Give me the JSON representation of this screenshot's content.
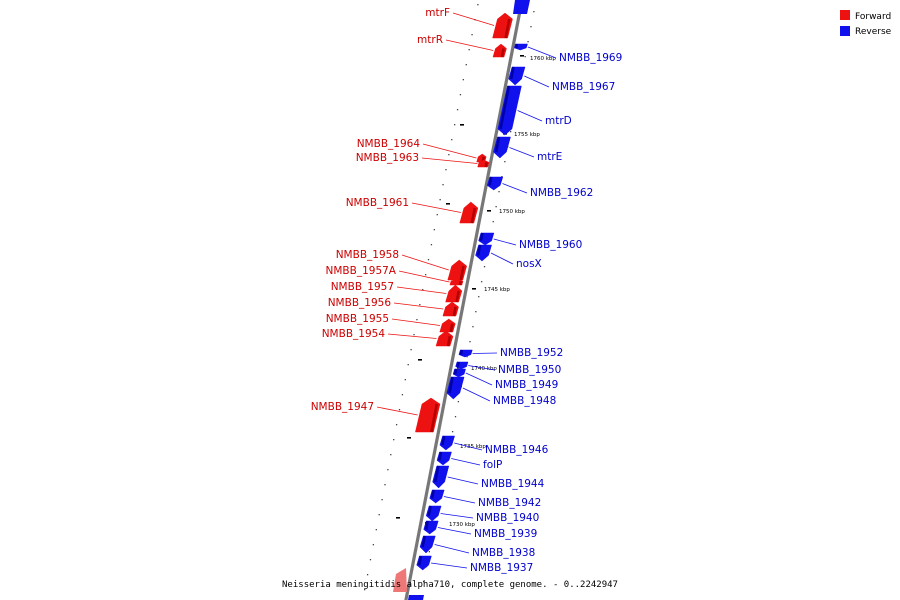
{
  "colors": {
    "forward": "#ee1111",
    "reverse": "#1111ee",
    "backbone": "#777777"
  },
  "legend": {
    "forward": "Forward",
    "reverse": "Reverse"
  },
  "caption": "Neisseria meningitidis alpha710, complete genome. - 0..2242947",
  "scale_ticks": [
    "1760 kbp",
    "1755 kbp",
    "1750 kbp",
    "1745 kbp",
    "1740 kbp",
    "1735 kbp",
    "1730 kbp"
  ],
  "forward_genes": [
    "mtrF",
    "mtrR",
    "NMBB_1964",
    "NMBB_1963",
    "NMBB_1961",
    "NMBB_1958",
    "NMBB_1957A",
    "NMBB_1957",
    "NMBB_1956",
    "NMBB_1955",
    "NMBB_1954",
    "NMBB_1947"
  ],
  "reverse_genes": [
    "NMBB_1969",
    "NMBB_1967",
    "mtrD",
    "mtrE",
    "NMBB_1962",
    "NMBB_1960",
    "nosX",
    "NMBB_1952",
    "NMBB_1950",
    "NMBB_1949",
    "NMBB_1948",
    "NMBB_1946",
    "folP",
    "NMBB_1944",
    "NMBB_1942",
    "NMBB_1940",
    "NMBB_1939",
    "NMBB_1938",
    "NMBB_1937"
  ]
}
